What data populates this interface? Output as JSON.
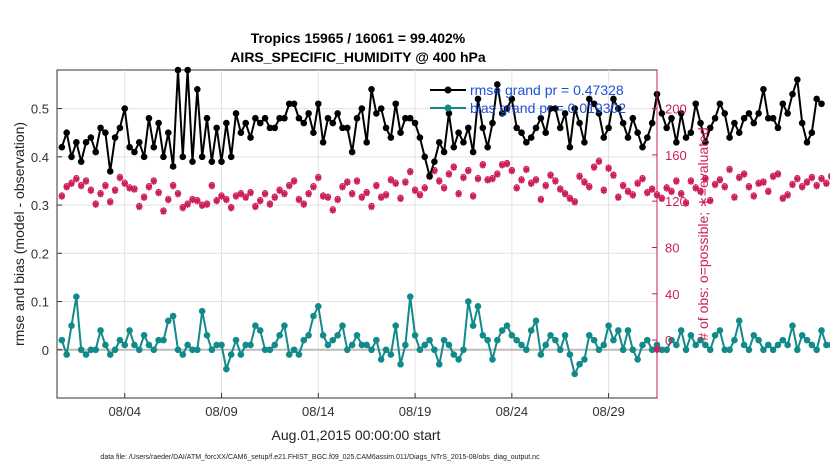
{
  "chart_data": {
    "type": "line",
    "title": "Tropics 15965 / 16061 = 99.402%",
    "subtitle": "AIRS_SPECIFIC_HUMIDITY @ 400 hPa",
    "xlabel": "Aug.01,2015 00:00:00 start",
    "ylabel_left": "rmse and bias (model - observation)",
    "ylabel_right": "# of obs: o=possible; ∗=evaluated",
    "footnote": "data file: /Users/raeder/DAI/ATM_forcXX/CAM6_setup/f.e21.FHIST_BGC.f09_025.CAM6assim.011/Diags_NTrS_2015-08/obs_diag_output.nc",
    "xlim": [
      0.5,
      31.5
    ],
    "ylim_left": [
      -0.1,
      0.58
    ],
    "ylim_right": [
      -50,
      233.3
    ],
    "x_ticks": [
      4,
      9,
      14,
      19,
      24,
      29
    ],
    "x_tick_labels": [
      "08/04",
      "08/09",
      "08/14",
      "08/19",
      "08/24",
      "08/29"
    ],
    "y_ticks_left": [
      0,
      0.1,
      0.2,
      0.3,
      0.4,
      0.5
    ],
    "y_tick_labels_left": [
      "0",
      "0.1",
      "0.2",
      "0.3",
      "0.4",
      "0.5"
    ],
    "y_ticks_right": [
      0,
      40,
      80,
      120,
      160,
      200
    ],
    "y_tick_labels_right": [
      "0",
      "40",
      "80",
      "120",
      "160",
      "200"
    ],
    "legend": [
      {
        "name": "rmse",
        "label": "rmse grand pr = 0.47328"
      },
      {
        "name": "bias",
        "label": "bias grand pr = 0.019302"
      }
    ],
    "series": [
      {
        "name": "rmse",
        "axis": "left",
        "color": "#000000",
        "x_start": 0.75,
        "x_step": 0.25,
        "values": [
          0.42,
          0.45,
          0.4,
          0.43,
          0.39,
          0.43,
          0.44,
          0.41,
          0.46,
          0.45,
          0.37,
          0.44,
          0.46,
          0.5,
          0.42,
          0.41,
          0.43,
          0.4,
          0.48,
          0.42,
          0.47,
          0.4,
          0.45,
          0.38,
          0.58,
          0.4,
          0.58,
          0.39,
          0.54,
          0.4,
          0.48,
          0.39,
          0.46,
          0.39,
          0.47,
          0.4,
          0.49,
          0.45,
          0.47,
          0.44,
          0.48,
          0.47,
          0.48,
          0.46,
          0.46,
          0.48,
          0.48,
          0.51,
          0.51,
          0.48,
          0.47,
          0.49,
          0.45,
          0.51,
          0.43,
          0.48,
          0.47,
          0.49,
          0.46,
          0.46,
          0.41,
          0.48,
          0.5,
          0.43,
          0.54,
          0.49,
          0.5,
          0.46,
          0.44,
          0.51,
          0.45,
          0.48,
          0.48,
          0.47,
          0.44,
          0.4,
          0.36,
          0.39,
          0.43,
          0.41,
          0.49,
          0.42,
          0.45,
          0.43,
          0.46,
          0.41,
          0.52,
          0.46,
          0.42,
          0.47,
          0.55,
          0.49,
          0.5,
          0.52,
          0.46,
          0.45,
          0.43,
          0.44,
          0.46,
          0.48,
          0.45,
          0.5,
          0.5,
          0.46,
          0.49,
          0.42,
          0.5,
          0.47,
          0.43,
          0.52,
          0.51,
          0.49,
          0.44,
          0.46,
          0.52,
          0.5,
          0.47,
          0.44,
          0.48,
          0.45,
          0.42,
          0.44,
          0.47,
          0.53,
          0.49,
          0.46,
          0.48,
          0.43,
          0.49,
          0.44,
          0.45,
          0.51,
          0.47,
          0.43,
          0.46,
          0.48,
          0.51,
          0.49,
          0.44,
          0.47,
          0.45,
          0.48,
          0.49,
          0.47,
          0.49,
          0.54,
          0.48,
          0.48,
          0.46,
          0.51,
          0.49,
          0.53,
          0.56,
          0.47,
          0.43,
          0.45,
          0.52,
          0.51
        ]
      },
      {
        "name": "bias",
        "axis": "left",
        "color": "#138a8a",
        "x_start": 0.75,
        "x_step": 0.25,
        "values": [
          0.02,
          -0.01,
          0.05,
          0.11,
          0.0,
          -0.01,
          0.0,
          0.0,
          0.04,
          0.01,
          -0.01,
          0.0,
          0.02,
          0.01,
          0.04,
          0.01,
          0.0,
          0.03,
          0.01,
          0.0,
          0.02,
          0.02,
          0.06,
          0.07,
          0.0,
          -0.01,
          0.01,
          0.0,
          0.0,
          0.08,
          0.03,
          0.0,
          0.01,
          0.01,
          -0.04,
          -0.01,
          0.02,
          -0.01,
          0.01,
          0.01,
          0.05,
          0.04,
          0.0,
          0.0,
          0.01,
          0.03,
          0.05,
          -0.01,
          0.0,
          -0.01,
          0.02,
          0.03,
          0.07,
          0.09,
          0.03,
          0.01,
          0.02,
          0.03,
          0.05,
          0.0,
          0.01,
          0.03,
          0.01,
          0.01,
          0.0,
          0.02,
          -0.02,
          0.0,
          -0.01,
          0.05,
          -0.03,
          0.01,
          0.11,
          0.03,
          0.0,
          0.01,
          0.02,
          0.0,
          -0.03,
          0.02,
          0.01,
          -0.01,
          -0.02,
          0.0,
          0.1,
          0.05,
          0.09,
          0.03,
          0.02,
          -0.02,
          0.02,
          0.04,
          0.05,
          0.03,
          0.02,
          0.01,
          0.0,
          0.04,
          0.06,
          -0.01,
          0.01,
          0.03,
          0.02,
          0.0,
          0.03,
          -0.01,
          -0.05,
          -0.03,
          -0.02,
          0.03,
          0.02,
          0.0,
          0.01,
          0.05,
          0.02,
          0.04,
          0.0,
          0.04,
          0.0,
          -0.02,
          0.01,
          0.02,
          0.0,
          0.01,
          0.0,
          0.0,
          0.02,
          0.01,
          0.04,
          0.0,
          0.03,
          0.01,
          0.02,
          0.01,
          0.0,
          0.03,
          0.04,
          0.0,
          0.0,
          0.02,
          0.06,
          0.01,
          0.0,
          0.03,
          0.02,
          0.0,
          0.01,
          0.0,
          0.01,
          0.02,
          0.01,
          0.05,
          0.0,
          0.03,
          0.02,
          0.01,
          0.0,
          0.04,
          0.01,
          0.01,
          0.01,
          0.0,
          0.01
        ]
      },
      {
        "name": "obs_possible",
        "axis": "right",
        "color": "#cc1f5b",
        "marker": "o",
        "x_start": 0.75,
        "x_step": 0.25,
        "values": [
          125,
          133,
          136,
          140,
          134,
          138,
          130,
          118,
          127,
          134,
          120,
          130,
          141,
          136,
          132,
          131,
          116,
          124,
          133,
          138,
          128,
          112,
          122,
          134,
          127,
          115,
          118,
          122,
          121,
          117,
          118,
          134,
          121,
          125,
          122,
          115,
          125,
          127,
          124,
          128,
          116,
          121,
          127,
          118,
          124,
          130,
          127,
          134,
          138,
          122,
          118,
          127,
          133,
          141,
          125,
          124,
          113,
          122,
          133,
          137,
          127,
          138,
          124,
          128,
          116,
          134,
          124,
          126,
          139,
          136,
          123,
          137,
          146,
          130,
          126,
          132,
          142,
          147,
          138,
          132,
          144,
          150,
          127,
          141,
          147,
          125,
          140,
          152,
          139,
          140,
          144,
          152,
          153,
          147,
          132,
          139,
          148,
          136,
          139,
          122,
          134,
          143,
          138,
          131,
          127,
          123,
          120,
          142,
          137,
          133,
          150,
          155,
          130,
          149,
          143,
          124,
          134,
          129,
          126,
          136,
          140,
          128,
          131,
          126,
          123,
          132,
          129,
          138,
          127,
          119,
          138,
          132,
          129,
          140,
          121,
          135,
          139,
          133,
          148,
          124,
          141,
          144,
          133,
          125,
          136,
          137,
          129,
          142,
          144,
          123,
          126,
          135,
          140,
          133,
          137,
          141,
          134,
          140,
          136,
          142
        ]
      },
      {
        "name": "obs_evaluated",
        "axis": "right",
        "color": "#cc1f5b",
        "marker": "*",
        "x_start": 0.75,
        "x_step": 0.25,
        "values": [
          124,
          132,
          135,
          139,
          133,
          137,
          129,
          117,
          126,
          133,
          119,
          129,
          140,
          135,
          131,
          130,
          115,
          123,
          132,
          137,
          127,
          111,
          121,
          133,
          126,
          114,
          117,
          121,
          120,
          116,
          117,
          133,
          120,
          124,
          121,
          114,
          124,
          126,
          123,
          127,
          115,
          120,
          126,
          117,
          123,
          129,
          126,
          133,
          137,
          121,
          117,
          126,
          132,
          140,
          124,
          123,
          112,
          121,
          132,
          136,
          126,
          137,
          123,
          127,
          115,
          133,
          123,
          125,
          138,
          135,
          122,
          136,
          145,
          129,
          125,
          131,
          141,
          146,
          137,
          131,
          143,
          149,
          126,
          140,
          146,
          124,
          139,
          151,
          138,
          139,
          143,
          151,
          152,
          146,
          131,
          138,
          147,
          135,
          138,
          121,
          133,
          142,
          137,
          130,
          126,
          122,
          119,
          141,
          136,
          132,
          149,
          154,
          129,
          148,
          142,
          123,
          133,
          128,
          125,
          135,
          139,
          127,
          130,
          125,
          122,
          131,
          128,
          137,
          126,
          118,
          137,
          131,
          128,
          139,
          120,
          134,
          138,
          132,
          147,
          123,
          140,
          143,
          132,
          124,
          135,
          136,
          128,
          141,
          143,
          122,
          125,
          134,
          139,
          132,
          136,
          140,
          133,
          139,
          135,
          141
        ]
      }
    ]
  }
}
